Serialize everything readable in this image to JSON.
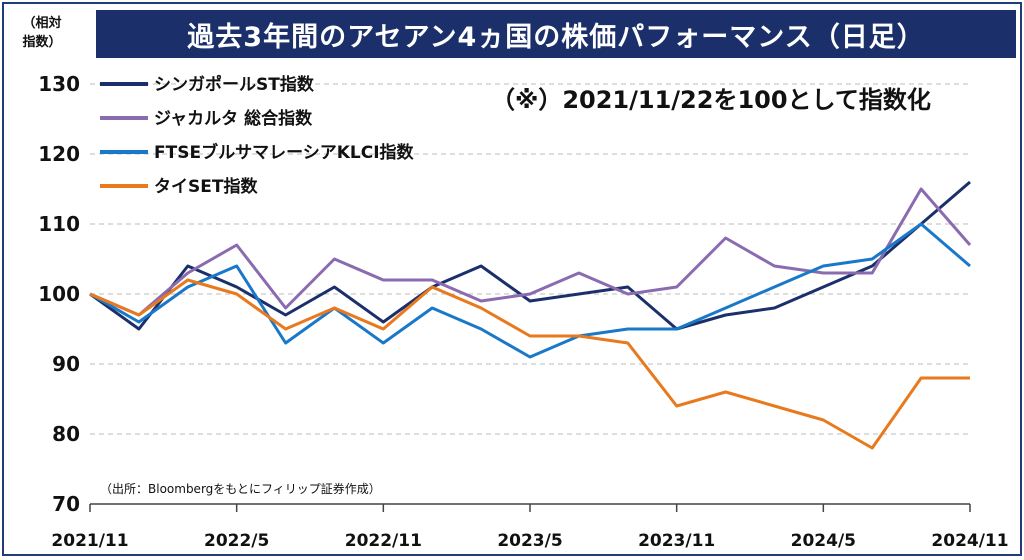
{
  "title": "過去3年間のアセアン4ヵ国の株価パフォーマンス（日足）",
  "unit_label_line1": "（相対",
  "unit_label_line2": "指数）",
  "note": "（※）2021/11/22を100として指数化",
  "source": "（出所：Bloombergをもとにフィリップ証券作成）",
  "chart_data": {
    "type": "line",
    "title": "過去3年間のアセアン4ヵ国の株価パフォーマンス（日足）",
    "ylim": [
      70,
      130
    ],
    "yticks": [
      70,
      80,
      90,
      100,
      110,
      120,
      130
    ],
    "xticks": [
      "2021/11",
      "2022/5",
      "2022/11",
      "2023/5",
      "2023/11",
      "2024/5",
      "2024/11"
    ],
    "grid": "horizontal dashed",
    "legend_position": "top-left",
    "x_dates": [
      "2021/11/22",
      "2022/01",
      "2022/03",
      "2022/05",
      "2022/07",
      "2022/09",
      "2022/11",
      "2023/01",
      "2023/03",
      "2023/05",
      "2023/07",
      "2023/09",
      "2023/11",
      "2024/01",
      "2024/03",
      "2024/05",
      "2024/07",
      "2024/09",
      "2024/11"
    ],
    "series": [
      {
        "name": "シンガポールST指数",
        "color": "#1b2f6b",
        "values": [
          100,
          95,
          104,
          101,
          97,
          101,
          96,
          101,
          104,
          99,
          100,
          101,
          95,
          97,
          98,
          101,
          104,
          110,
          116
        ]
      },
      {
        "name": "ジャカルタ 総合指数",
        "color": "#8b6bb0",
        "values": [
          100,
          97,
          103,
          107,
          98,
          105,
          102,
          102,
          99,
          100,
          103,
          100,
          101,
          108,
          104,
          103,
          103,
          115,
          107
        ]
      },
      {
        "name": "FTSEブルサマレーシアKLCI指数",
        "color": "#1a78c8",
        "values": [
          100,
          96,
          101,
          104,
          93,
          98,
          93,
          98,
          95,
          91,
          94,
          95,
          95,
          98,
          101,
          104,
          105,
          110,
          104
        ]
      },
      {
        "name": "タイSET指数",
        "color": "#e8791d",
        "values": [
          100,
          97,
          102,
          100,
          95,
          98,
          95,
          101,
          98,
          94,
          94,
          93,
          84,
          86,
          84,
          82,
          78,
          88,
          88
        ]
      }
    ]
  }
}
